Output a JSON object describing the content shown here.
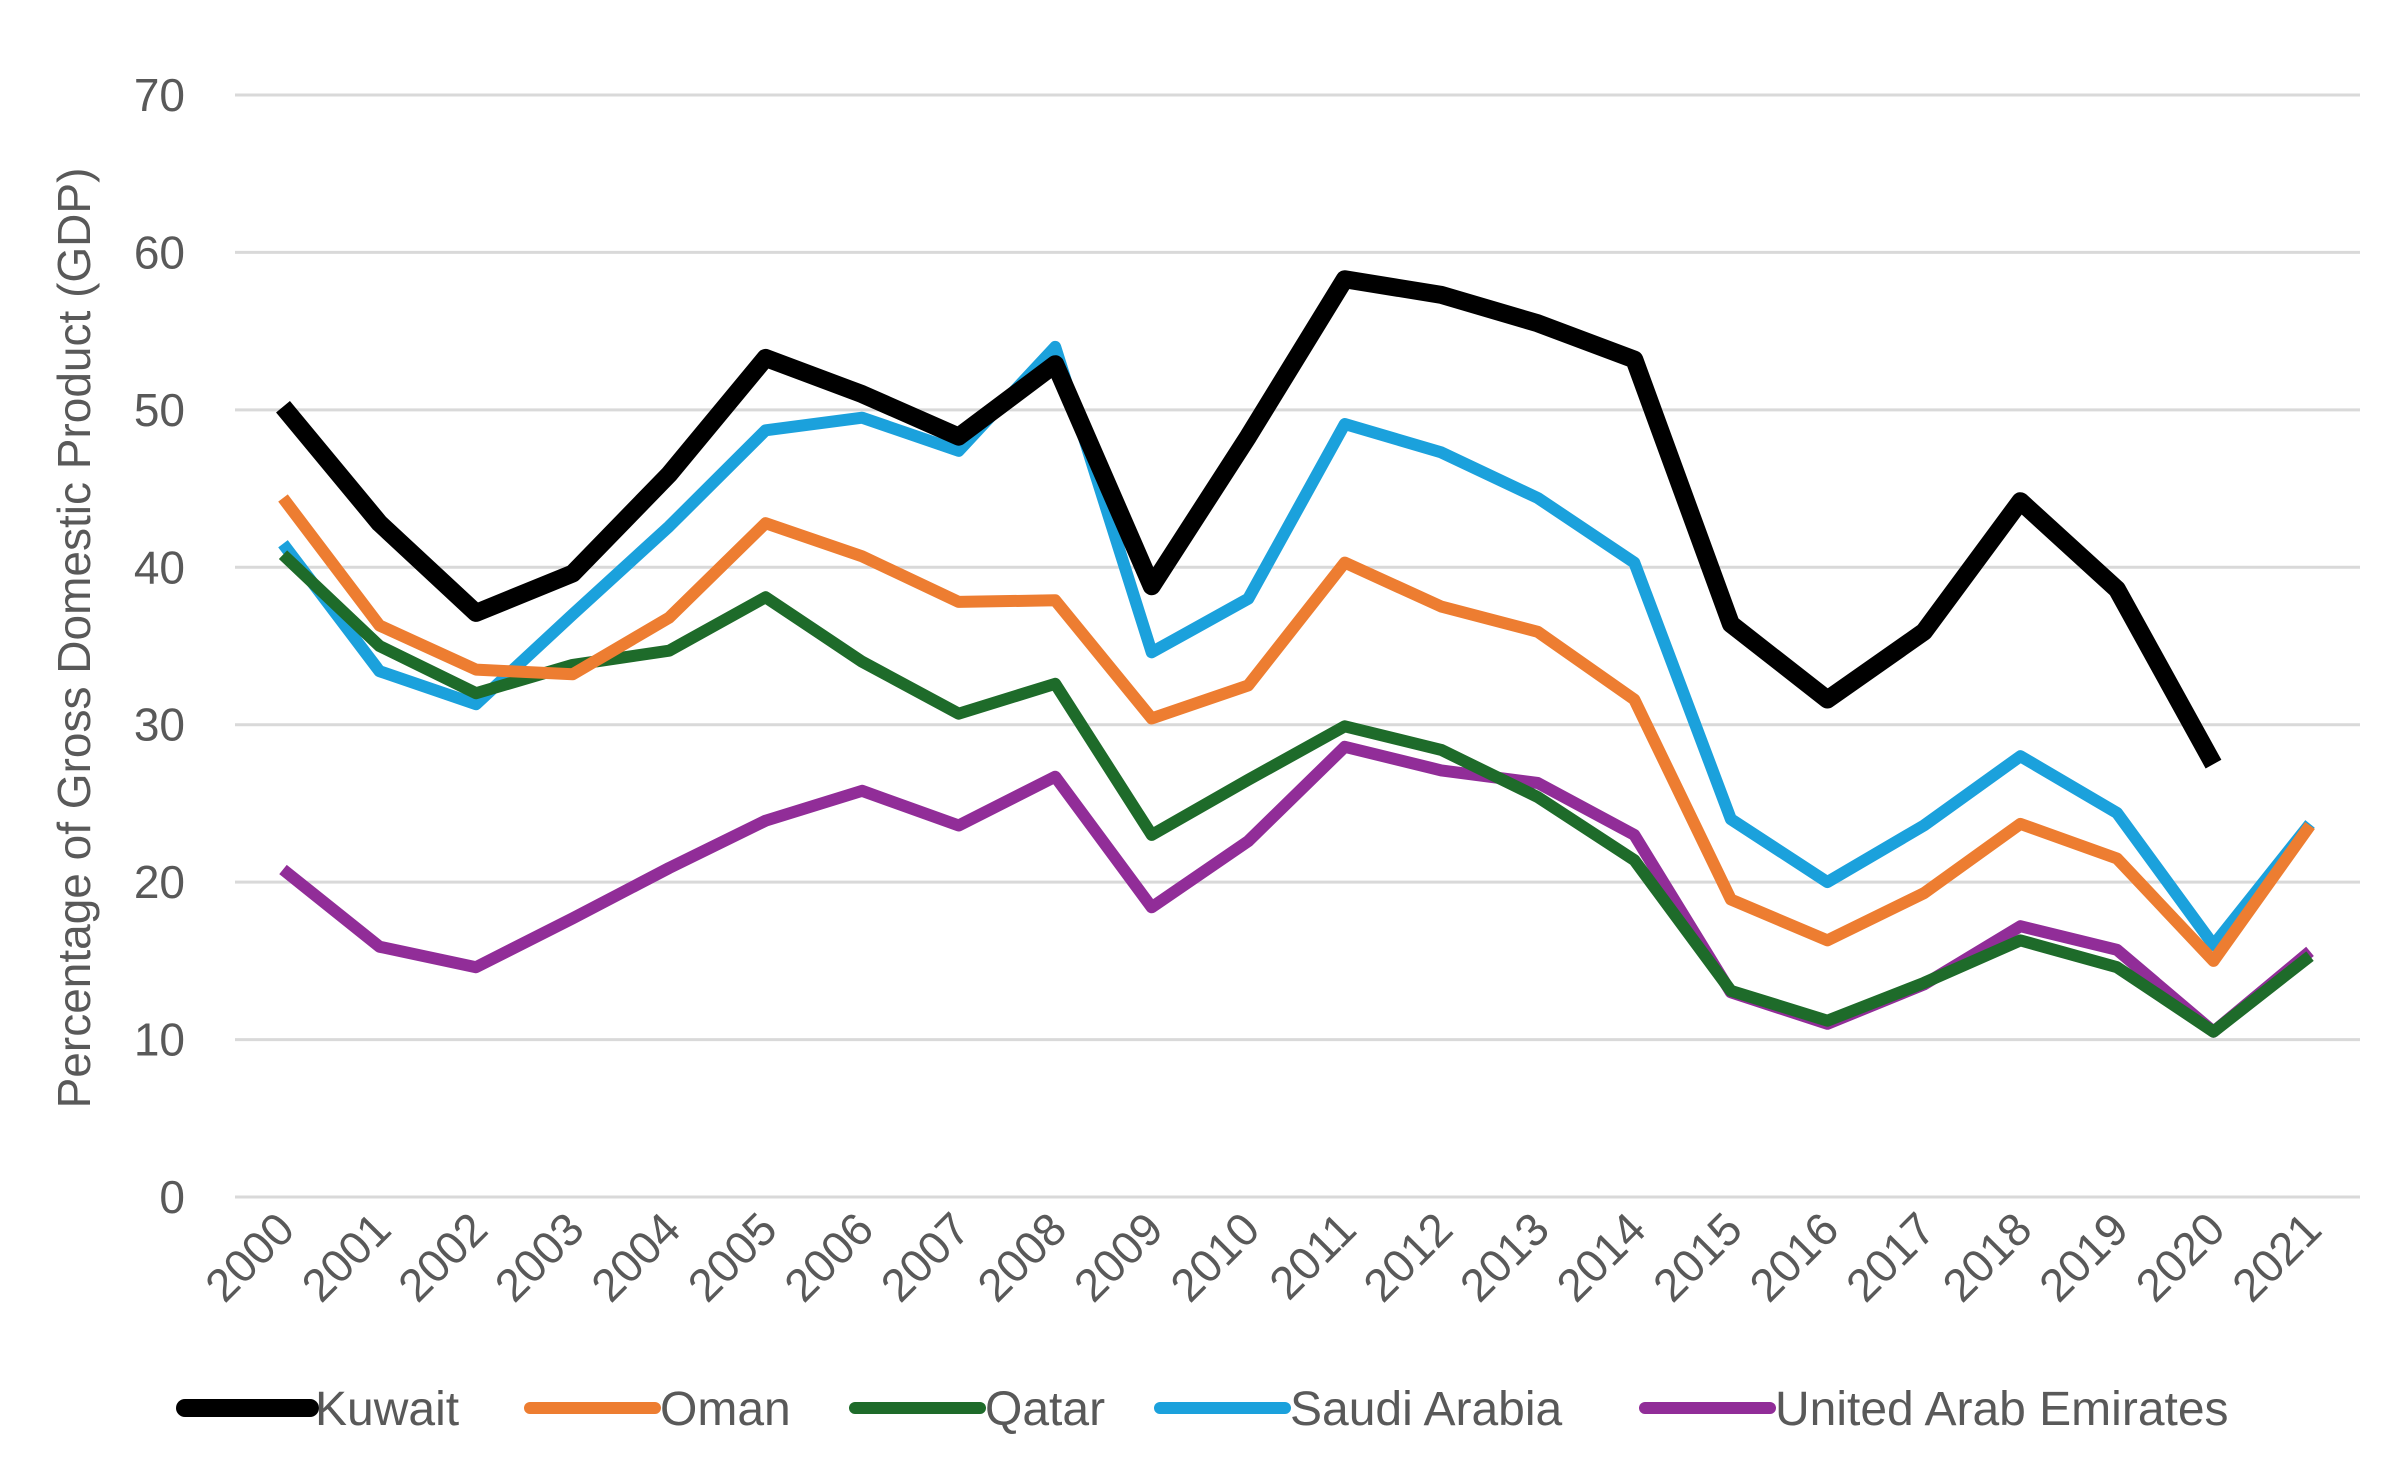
{
  "chart_data": {
    "type": "line",
    "ylabel": "Percentage of Gross Domestic Product (GDP)",
    "xlabel": "",
    "ylim": [
      0,
      70
    ],
    "yticks": [
      "0",
      "10",
      "20",
      "30",
      "40",
      "50",
      "60",
      "70"
    ],
    "categories": [
      "2000",
      "2001",
      "2002",
      "2003",
      "2004",
      "2005",
      "2006",
      "2007",
      "2008",
      "2009",
      "2010",
      "2011",
      "2012",
      "2013",
      "2014",
      "2015",
      "2016",
      "2017",
      "2018",
      "2019",
      "2020",
      "2021"
    ],
    "grid": true,
    "legend_position": "bottom",
    "series": [
      {
        "name": "Kuwait",
        "color": "#000000",
        "width": 18,
        "values": [
          50.2,
          42.8,
          37.1,
          39.6,
          45.9,
          53.3,
          51.0,
          48.3,
          52.9,
          38.8,
          48.3,
          58.3,
          57.3,
          55.5,
          53.2,
          36.4,
          31.6,
          35.9,
          44.2,
          38.6,
          27.5,
          null
        ]
      },
      {
        "name": "Oman",
        "color": "#ED7D31",
        "width": 12,
        "values": [
          44.4,
          36.3,
          33.5,
          33.2,
          36.8,
          42.8,
          40.7,
          37.8,
          37.9,
          30.4,
          32.5,
          40.3,
          37.5,
          35.9,
          31.6,
          18.9,
          16.3,
          19.3,
          23.7,
          21.5,
          15.0,
          23.6
        ]
      },
      {
        "name": "Qatar",
        "color": "#1E6B2A",
        "width": 12,
        "values": [
          40.8,
          35.0,
          32.0,
          33.8,
          34.7,
          38.1,
          34.0,
          30.7,
          32.6,
          23.0,
          26.5,
          29.9,
          28.4,
          25.4,
          21.4,
          13.1,
          11.2,
          13.6,
          16.3,
          14.6,
          10.5,
          15.3
        ]
      },
      {
        "name": "Saudi Arabia",
        "color": "#1BA1DC",
        "width": 12,
        "values": [
          41.5,
          33.4,
          31.3,
          37.0,
          42.6,
          48.7,
          49.5,
          47.4,
          54.0,
          34.6,
          38.0,
          49.1,
          47.3,
          44.4,
          40.3,
          24.0,
          20.0,
          23.6,
          28.0,
          24.4,
          16.0,
          23.7
        ]
      },
      {
        "name": "United Arab Emirates",
        "color": "#912D98",
        "width": 12,
        "values": [
          20.8,
          15.9,
          14.6,
          17.7,
          20.9,
          23.9,
          25.8,
          23.6,
          26.7,
          18.4,
          22.6,
          28.6,
          27.1,
          26.3,
          23.0,
          13.0,
          11.0,
          13.5,
          17.2,
          15.7,
          10.5,
          15.6
        ]
      }
    ]
  }
}
